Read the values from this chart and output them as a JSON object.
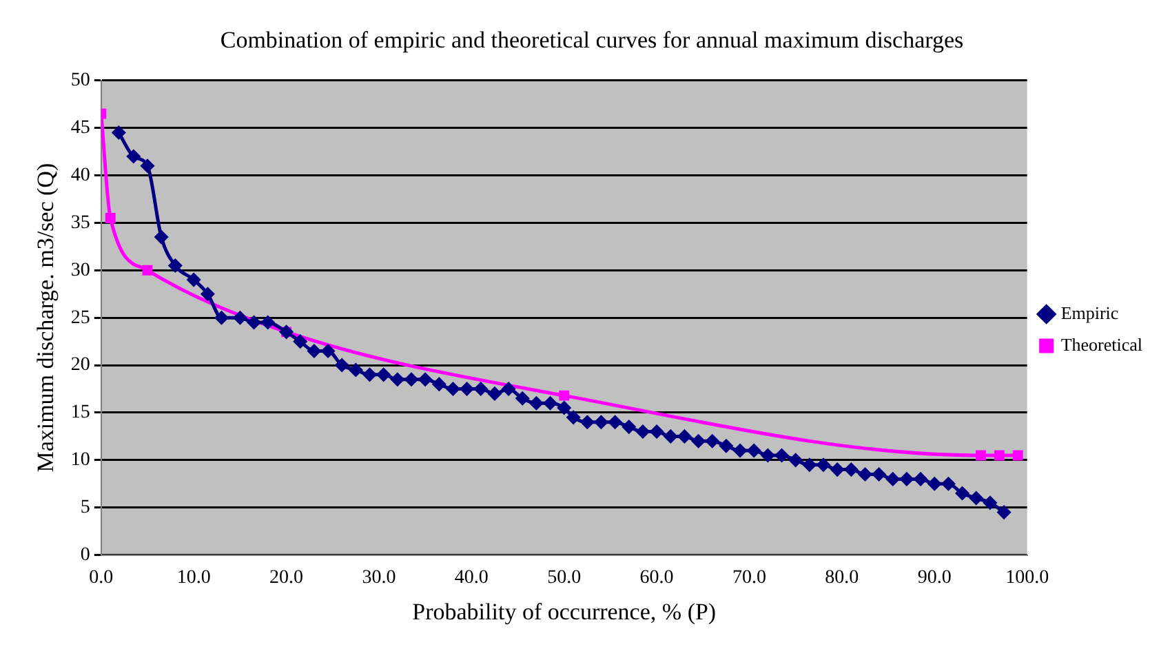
{
  "chart_data": {
    "type": "line",
    "title": "Combination of empiric and theoretical curves for annual maximum discharges",
    "xlabel": "Probability of occurrence, % (P)",
    "ylabel": "Maximum discharge. m3/sec (Q)",
    "xlim": [
      0,
      100
    ],
    "xticks": [
      {
        "value": 0,
        "label": "0.0"
      },
      {
        "value": 10,
        "label": "10.0"
      },
      {
        "value": 20,
        "label": "20.0"
      },
      {
        "value": 30,
        "label": "30.0"
      },
      {
        "value": 40,
        "label": "40.0"
      },
      {
        "value": 50,
        "label": "50.0"
      },
      {
        "value": 60,
        "label": "60.0"
      },
      {
        "value": 70,
        "label": "70.0"
      },
      {
        "value": 80,
        "label": "80.0"
      },
      {
        "value": 90,
        "label": "90.0"
      },
      {
        "value": 100,
        "label": "100.0"
      }
    ],
    "ylim": [
      0,
      50
    ],
    "yticks": [
      0,
      5,
      10,
      15,
      20,
      25,
      30,
      35,
      40,
      45,
      50
    ],
    "grid": "y",
    "legend": "right",
    "line_style": "solid",
    "series": [
      {
        "name": "Empiric",
        "marker": "diamond",
        "color": "#000080",
        "x": [
          1.9,
          3.5,
          5,
          6.5,
          8,
          10,
          11.5,
          13,
          15,
          16.5,
          18,
          20,
          21.5,
          23,
          24.5,
          26,
          27.5,
          29,
          30.5,
          32,
          33.5,
          35,
          36.5,
          38,
          39.5,
          41,
          42.5,
          44,
          45.5,
          47,
          48.5,
          50,
          51,
          52.5,
          54,
          55.5,
          57,
          58.5,
          60,
          61.5,
          63,
          64.5,
          66,
          67.5,
          69,
          70.5,
          72,
          73.5,
          75,
          76.5,
          78,
          79.5,
          81,
          82.5,
          84,
          85.5,
          87,
          88.5,
          90,
          91.5,
          93,
          94.5,
          96,
          97.5
        ],
        "values": [
          44.5,
          42,
          41,
          33.5,
          30.5,
          29,
          27.5,
          25,
          25,
          24.5,
          24.5,
          23.5,
          22.5,
          21.5,
          21.5,
          20,
          19.5,
          19,
          19,
          18.5,
          18.5,
          18.5,
          18,
          17.5,
          17.5,
          17.5,
          17,
          17.5,
          16.5,
          16,
          16,
          15.5,
          14.5,
          14,
          14,
          14,
          13.5,
          13,
          13,
          12.5,
          12.5,
          12,
          12,
          11.5,
          11,
          11,
          10.5,
          10.5,
          10,
          9.5,
          9.5,
          9,
          9,
          8.5,
          8.5,
          8,
          8,
          8,
          7.5,
          7.5,
          6.5,
          6,
          5.5,
          4.5
        ]
      },
      {
        "name": "Theoretical",
        "marker": "square",
        "color": "#ff00ff",
        "x": [
          0,
          1,
          5,
          20,
          50,
          95,
          97,
          99
        ],
        "values": [
          46.5,
          35.5,
          30,
          23.5,
          16.8,
          10.5,
          10.5,
          10.5
        ]
      }
    ]
  }
}
